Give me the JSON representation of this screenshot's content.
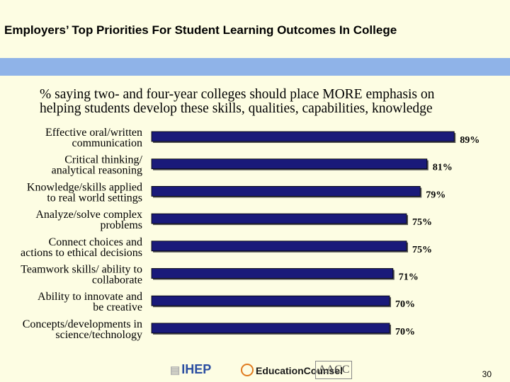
{
  "slide": {
    "title": "Employers’ Top Priorities For Student Learning Outcomes In College",
    "band_color": "#8fb3e8",
    "subtitle_line1": "% saying two- and four-year colleges should place MORE emphasis on",
    "subtitle_line2": "helping students develop these skills, qualities, capabilities, knowledge",
    "page_number": "30"
  },
  "logos": {
    "iheep": "IHEP",
    "education_counsel": "EducationCounsel",
    "aacc": "AACC"
  },
  "chart_data": {
    "type": "bar",
    "orientation": "horizontal",
    "bar_color": "#1a1a7a",
    "categories": [
      [
        "Effective oral/written",
        "communication"
      ],
      [
        "Critical thinking/",
        "analytical reasoning"
      ],
      [
        "Knowledge/skills applied",
        "to real world settings"
      ],
      [
        "Analyze/solve complex",
        "problems"
      ],
      [
        "Connect choices and",
        "actions to ethical decisions"
      ],
      [
        "Teamwork skills/ ability to",
        "collaborate"
      ],
      [
        "Ability to innovate and",
        "be creative"
      ],
      [
        "Concepts/developments in",
        "science/technology"
      ]
    ],
    "values": [
      89,
      81,
      79,
      75,
      75,
      71,
      70,
      70
    ],
    "value_labels": [
      "89%",
      "81%",
      "79%",
      "75%",
      "75%",
      "71%",
      "70%",
      "70%"
    ],
    "xlim": [
      0,
      100
    ]
  }
}
